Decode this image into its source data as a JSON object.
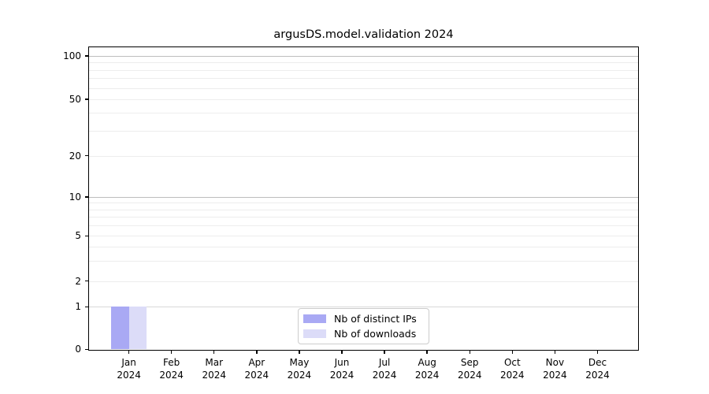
{
  "figure": {
    "background": "#ffffff"
  },
  "chart_data": {
    "type": "bar",
    "title": "argusDS.model.validation 2024",
    "xlabel": "",
    "ylabel": "",
    "x_categories": [
      "Jan",
      "Feb",
      "Mar",
      "Apr",
      "May",
      "Jun",
      "Jul",
      "Aug",
      "Sep",
      "Oct",
      "Nov",
      "Dec"
    ],
    "x_category_sublabel": "2024",
    "series": [
      {
        "name": "Nb of distinct IPs",
        "color": "#a9a9f4",
        "values": [
          1,
          0,
          0,
          0,
          0,
          0,
          0,
          0,
          0,
          0,
          0,
          0
        ]
      },
      {
        "name": "Nb of downloads",
        "color": "#dcdcf8",
        "values": [
          1,
          0,
          0,
          0,
          0,
          0,
          0,
          0,
          0,
          0,
          0,
          0
        ]
      }
    ],
    "yscale": "symlog",
    "ylim": [
      0,
      115
    ],
    "yticks": [
      0,
      1,
      2,
      5,
      10,
      20,
      50,
      100
    ],
    "minor_grid_values": [
      2,
      3,
      4,
      5,
      6,
      7,
      8,
      9,
      20,
      30,
      40,
      50,
      60,
      70,
      80,
      90
    ],
    "grid": true,
    "legend_position": "lower center"
  },
  "colors": {
    "spine": "#000000",
    "grid_major_upper": "#bdbdbd",
    "grid_major_unit": "#d9d9d9",
    "grid_minor": "#ededed",
    "legend_border": "#cccccc",
    "text": "#000000"
  }
}
